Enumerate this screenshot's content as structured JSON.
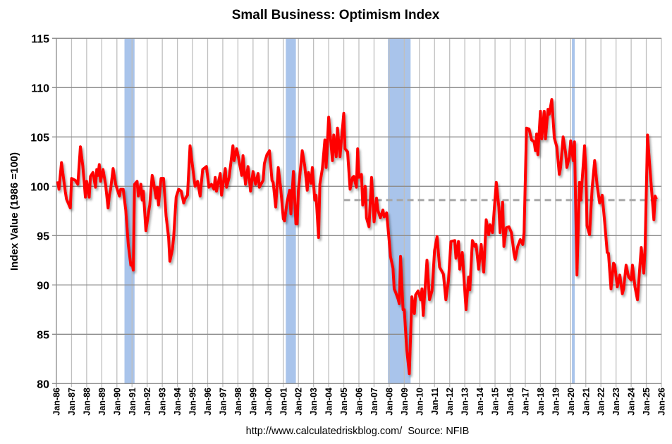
{
  "chart_data": {
    "type": "line",
    "title": "Small Business: Optimism Index",
    "xlabel": "",
    "ylabel": "Index Value (1986 =100)",
    "footer": "http://www.calculatedriskblog.com/  Source: NFIB",
    "ylim": [
      80,
      115
    ],
    "yticks": [
      80,
      85,
      90,
      95,
      100,
      105,
      110,
      115
    ],
    "xlim": [
      "1986-01",
      "2026-01"
    ],
    "xtick_labels": [
      "Jan-86",
      "Jan-87",
      "Jan-88",
      "Jan-89",
      "Jan-90",
      "Jan-91",
      "Jan-92",
      "Jan-93",
      "Jan-94",
      "Jan-95",
      "Jan-96",
      "Jan-97",
      "Jan-98",
      "Jan-99",
      "Jan-00",
      "Jan-01",
      "Jan-02",
      "Jan-03",
      "Jan-04",
      "Jan-05",
      "Jan-06",
      "Jan-07",
      "Jan-08",
      "Jan-09",
      "Jan-10",
      "Jan-11",
      "Jan-12",
      "Jan-13",
      "Jan-14",
      "Jan-15",
      "Jan-16",
      "Jan-17",
      "Jan-18",
      "Jan-19",
      "Jan-20",
      "Jan-21",
      "Jan-22",
      "Jan-23",
      "Jan-24",
      "Jan-25",
      "Jan-26"
    ],
    "grid": true,
    "colors": {
      "series": "#ff0000",
      "recession": "#a9c4eb",
      "average": "#a6a6a6",
      "grid_h": "#8c8c8c",
      "grid_v": "#bfbfbf"
    },
    "recessions": [
      [
        "1990-07",
        "1991-03"
      ],
      [
        "2001-03",
        "2001-11"
      ],
      [
        "2007-12",
        "2009-06"
      ],
      [
        "2020-02",
        "2020-04"
      ]
    ],
    "average_line": {
      "value": 98.6,
      "start": "2005-01",
      "style": "dashed"
    },
    "series": [
      {
        "points": [
          [
            "1986-02",
            100.5
          ],
          [
            "1986-03",
            99.7
          ],
          [
            "1986-05",
            102.4
          ],
          [
            "1986-08",
            99.5
          ],
          [
            "1986-09",
            98.7
          ],
          [
            "1986-12",
            97.8
          ],
          [
            "1987-01",
            100.8
          ],
          [
            "1987-04",
            100.6
          ],
          [
            "1987-06",
            100.2
          ],
          [
            "1987-08",
            104.0
          ],
          [
            "1987-10",
            102.0
          ],
          [
            "1987-12",
            98.9
          ],
          [
            "1988-01",
            100.5
          ],
          [
            "1988-03",
            98.9
          ],
          [
            "1988-04",
            101.0
          ],
          [
            "1988-06",
            101.4
          ],
          [
            "1988-08",
            99.9
          ],
          [
            "1988-09",
            101.7
          ],
          [
            "1988-10",
            101.1
          ],
          [
            "1988-11",
            102.2
          ],
          [
            "1988-12",
            100.5
          ],
          [
            "1989-02",
            101.7
          ],
          [
            "1989-04",
            100.2
          ],
          [
            "1989-06",
            97.8
          ],
          [
            "1989-07",
            99.1
          ],
          [
            "1989-08",
            99.7
          ],
          [
            "1989-10",
            101.8
          ],
          [
            "1989-12",
            100.2
          ],
          [
            "1990-03",
            99.0
          ],
          [
            "1990-04",
            99.7
          ],
          [
            "1990-06",
            99.7
          ],
          [
            "1990-08",
            97.6
          ],
          [
            "1990-10",
            94.1
          ],
          [
            "1990-12",
            92.0
          ],
          [
            "1991-01",
            92.2
          ],
          [
            "1991-02",
            91.5
          ],
          [
            "1991-03",
            100.2
          ],
          [
            "1991-05",
            100.5
          ],
          [
            "1991-06",
            99.0
          ],
          [
            "1991-08",
            100.2
          ],
          [
            "1991-09",
            98.6
          ],
          [
            "1991-10",
            99.5
          ],
          [
            "1991-12",
            95.5
          ],
          [
            "1992-03",
            98.1
          ],
          [
            "1992-05",
            101.1
          ],
          [
            "1992-06",
            100.5
          ],
          [
            "1992-08",
            98.8
          ],
          [
            "1992-09",
            99.9
          ],
          [
            "1992-10",
            98.1
          ],
          [
            "1992-12",
            100.8
          ],
          [
            "1993-02",
            100.8
          ],
          [
            "1993-04",
            97.0
          ],
          [
            "1993-06",
            94.8
          ],
          [
            "1993-07",
            92.4
          ],
          [
            "1993-09",
            93.6
          ],
          [
            "1993-10",
            94.8
          ],
          [
            "1993-12",
            98.9
          ],
          [
            "1994-02",
            99.7
          ],
          [
            "1994-04",
            99.5
          ],
          [
            "1994-06",
            98.3
          ],
          [
            "1994-07",
            98.7
          ],
          [
            "1994-09",
            99.1
          ],
          [
            "1994-11",
            104.1
          ],
          [
            "1995-01",
            102.0
          ],
          [
            "1995-03",
            100.0
          ],
          [
            "1995-05",
            100.5
          ],
          [
            "1995-07",
            99.0
          ],
          [
            "1995-09",
            101.7
          ],
          [
            "1995-12",
            102.0
          ],
          [
            "1996-02",
            99.9
          ],
          [
            "1996-04",
            100.2
          ],
          [
            "1996-06",
            99.7
          ],
          [
            "1996-07",
            100.9
          ],
          [
            "1996-08",
            99.5
          ],
          [
            "1996-11",
            101.3
          ],
          [
            "1996-12",
            99.1
          ],
          [
            "1997-03",
            101.8
          ],
          [
            "1997-04",
            99.9
          ],
          [
            "1997-06",
            100.9
          ],
          [
            "1997-09",
            104.1
          ],
          [
            "1997-10",
            102.6
          ],
          [
            "1997-12",
            103.8
          ],
          [
            "1998-01",
            103.2
          ],
          [
            "1998-04",
            101.1
          ],
          [
            "1998-05",
            103.1
          ],
          [
            "1998-07",
            100.2
          ],
          [
            "1998-09",
            102.0
          ],
          [
            "1998-11",
            99.5
          ],
          [
            "1999-01",
            101.5
          ],
          [
            "1999-03",
            100.2
          ],
          [
            "1999-05",
            101.3
          ],
          [
            "1999-06",
            99.9
          ],
          [
            "1999-09",
            100.6
          ],
          [
            "1999-10",
            102.3
          ],
          [
            "1999-12",
            103.2
          ],
          [
            "2000-02",
            103.6
          ],
          [
            "2000-04",
            100.6
          ],
          [
            "2000-05",
            100.4
          ],
          [
            "2000-07",
            97.9
          ],
          [
            "2000-09",
            101.9
          ],
          [
            "2000-11",
            99.7
          ],
          [
            "2001-01",
            96.7
          ],
          [
            "2001-02",
            96.5
          ],
          [
            "2001-04",
            98.4
          ],
          [
            "2001-06",
            99.6
          ],
          [
            "2001-07",
            97.2
          ],
          [
            "2001-09",
            101.5
          ],
          [
            "2001-11",
            96.2
          ],
          [
            "2001-12",
            96.2
          ],
          [
            "2002-01",
            99.6
          ],
          [
            "2002-04",
            103.6
          ],
          [
            "2002-06",
            102.1
          ],
          [
            "2002-08",
            99.6
          ],
          [
            "2002-09",
            101.4
          ],
          [
            "2002-11",
            100.3
          ],
          [
            "2002-12",
            101.9
          ],
          [
            "2003-02",
            98.6
          ],
          [
            "2003-03",
            99.1
          ],
          [
            "2003-05",
            94.8
          ],
          [
            "2003-06",
            100.2
          ],
          [
            "2003-08",
            101.8
          ],
          [
            "2003-10",
            104.7
          ],
          [
            "2003-11",
            101.9
          ],
          [
            "2004-01",
            107.0
          ],
          [
            "2004-04",
            102.6
          ],
          [
            "2004-05",
            105.2
          ],
          [
            "2004-07",
            103.0
          ],
          [
            "2004-08",
            105.9
          ],
          [
            "2004-10",
            103.0
          ],
          [
            "2004-11",
            104.5
          ],
          [
            "2005-01",
            107.4
          ],
          [
            "2005-02",
            103.8
          ],
          [
            "2005-04",
            103.5
          ],
          [
            "2005-06",
            99.7
          ],
          [
            "2005-08",
            100.9
          ],
          [
            "2005-09",
            101.0
          ],
          [
            "2005-11",
            99.9
          ],
          [
            "2005-12",
            103.8
          ],
          [
            "2006-01",
            100.9
          ],
          [
            "2006-03",
            101.2
          ],
          [
            "2006-04",
            98.1
          ],
          [
            "2006-06",
            100.0
          ],
          [
            "2006-07",
            96.8
          ],
          [
            "2006-09",
            95.9
          ],
          [
            "2006-11",
            100.9
          ],
          [
            "2007-01",
            96.4
          ],
          [
            "2007-03",
            98.8
          ],
          [
            "2007-04",
            97.6
          ],
          [
            "2007-06",
            96.8
          ],
          [
            "2007-08",
            97.6
          ],
          [
            "2007-09",
            96.9
          ],
          [
            "2007-11",
            97.3
          ],
          [
            "2008-01",
            94.5
          ],
          [
            "2008-02",
            92.9
          ],
          [
            "2008-04",
            91.7
          ],
          [
            "2008-05",
            89.6
          ],
          [
            "2008-06",
            89.3
          ],
          [
            "2008-08",
            88.6
          ],
          [
            "2008-09",
            88.1
          ],
          [
            "2008-10",
            92.9
          ],
          [
            "2008-12",
            87.5
          ],
          [
            "2009-01",
            87.5
          ],
          [
            "2009-03",
            83.4
          ],
          [
            "2009-05",
            81.0
          ],
          [
            "2009-07",
            88.8
          ],
          [
            "2009-09",
            87.1
          ],
          [
            "2009-10",
            89.0
          ],
          [
            "2009-12",
            89.4
          ],
          [
            "2010-02",
            88.5
          ],
          [
            "2010-03",
            89.6
          ],
          [
            "2010-04",
            86.9
          ],
          [
            "2010-07",
            92.5
          ],
          [
            "2010-09",
            88.5
          ],
          [
            "2010-11",
            89.4
          ],
          [
            "2011-01",
            93.5
          ],
          [
            "2011-03",
            94.9
          ],
          [
            "2011-05",
            91.8
          ],
          [
            "2011-08",
            91.1
          ],
          [
            "2011-10",
            88.5
          ],
          [
            "2011-12",
            90.4
          ],
          [
            "2012-02",
            94.4
          ],
          [
            "2012-05",
            94.5
          ],
          [
            "2012-06",
            92.7
          ],
          [
            "2012-08",
            94.4
          ],
          [
            "2012-09",
            91.6
          ],
          [
            "2012-11",
            93.3
          ],
          [
            "2013-02",
            87.5
          ],
          [
            "2013-04",
            90.8
          ],
          [
            "2013-05",
            89.5
          ],
          [
            "2013-07",
            94.5
          ],
          [
            "2013-09",
            93.9
          ],
          [
            "2013-10",
            94.1
          ],
          [
            "2013-12",
            91.6
          ],
          [
            "2014-02",
            94.1
          ],
          [
            "2014-04",
            91.3
          ],
          [
            "2014-06",
            96.6
          ],
          [
            "2014-08",
            95.1
          ],
          [
            "2014-09",
            96.1
          ],
          [
            "2014-11",
            95.3
          ],
          [
            "2015-02",
            100.4
          ],
          [
            "2015-04",
            97.9
          ],
          [
            "2015-05",
            95.3
          ],
          [
            "2015-07",
            98.4
          ],
          [
            "2015-08",
            93.9
          ],
          [
            "2015-10",
            95.8
          ],
          [
            "2015-12",
            95.9
          ],
          [
            "2016-02",
            95.3
          ],
          [
            "2016-04",
            93.2
          ],
          [
            "2016-05",
            92.6
          ],
          [
            "2016-07",
            93.9
          ],
          [
            "2016-09",
            94.6
          ],
          [
            "2016-11",
            94.1
          ],
          [
            "2016-12",
            95.3
          ],
          [
            "2017-02",
            105.9
          ],
          [
            "2017-04",
            105.8
          ],
          [
            "2017-06",
            104.7
          ],
          [
            "2017-08",
            104.5
          ],
          [
            "2017-09",
            103.6
          ],
          [
            "2017-10",
            105.3
          ],
          [
            "2017-11",
            103.2
          ],
          [
            "2018-01",
            107.6
          ],
          [
            "2018-02",
            104.8
          ],
          [
            "2018-04",
            107.6
          ],
          [
            "2018-05",
            104.8
          ],
          [
            "2018-07",
            107.8
          ],
          [
            "2018-08",
            107.3
          ],
          [
            "2018-10",
            108.8
          ],
          [
            "2018-12",
            104.9
          ],
          [
            "2019-02",
            104.0
          ],
          [
            "2019-04",
            101.2
          ],
          [
            "2019-05",
            101.9
          ],
          [
            "2019-07",
            105.0
          ],
          [
            "2019-09",
            103.4
          ],
          [
            "2019-10",
            101.9
          ],
          [
            "2019-12",
            103.0
          ],
          [
            "2020-01",
            104.6
          ],
          [
            "2020-03",
            102.6
          ],
          [
            "2020-04",
            104.5
          ],
          [
            "2020-06",
            91.0
          ],
          [
            "2020-08",
            100.4
          ],
          [
            "2020-09",
            98.6
          ],
          [
            "2020-12",
            104.1
          ],
          [
            "2021-01",
            101.7
          ],
          [
            "2021-02",
            96.0
          ],
          [
            "2021-04",
            95.1
          ],
          [
            "2021-06",
            99.8
          ],
          [
            "2021-08",
            102.6
          ],
          [
            "2021-10",
            100.1
          ],
          [
            "2021-12",
            98.3
          ],
          [
            "2022-02",
            99.1
          ],
          [
            "2022-04",
            96.3
          ],
          [
            "2022-06",
            93.3
          ],
          [
            "2022-07",
            93.2
          ],
          [
            "2022-09",
            89.6
          ],
          [
            "2022-11",
            92.2
          ],
          [
            "2022-12",
            92.0
          ],
          [
            "2023-02",
            89.8
          ],
          [
            "2023-04",
            91.0
          ],
          [
            "2023-06",
            89.1
          ],
          [
            "2023-07",
            89.6
          ],
          [
            "2023-09",
            92.0
          ],
          [
            "2023-11",
            90.8
          ],
          [
            "2024-01",
            90.5
          ],
          [
            "2024-02",
            92.0
          ],
          [
            "2024-04",
            89.8
          ],
          [
            "2024-06",
            88.5
          ],
          [
            "2024-07",
            90.3
          ],
          [
            "2024-09",
            93.8
          ],
          [
            "2024-11",
            91.2
          ],
          [
            "2024-12",
            93.6
          ],
          [
            "2025-02",
            105.2
          ],
          [
            "2025-04",
            101.6
          ],
          [
            "2025-07",
            96.6
          ],
          [
            "2025-08",
            99.0
          ],
          [
            "2025-09",
            98.7
          ]
        ]
      }
    ]
  }
}
